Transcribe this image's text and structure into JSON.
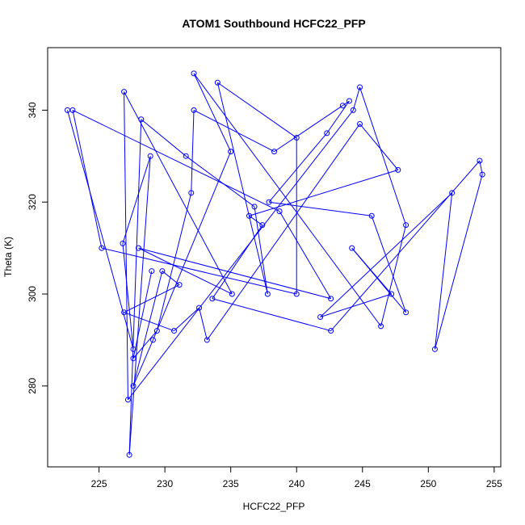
{
  "chart_data": {
    "type": "scatter",
    "title": "ATOM1 Southbound HCFC22_PFP",
    "xlabel": "HCFC22_PFP",
    "ylabel": "Theta (K)",
    "xlim": [
      221.1,
      255.5
    ],
    "ylim": [
      262.4,
      353.6
    ],
    "xticks": [
      225,
      230,
      235,
      240,
      245,
      250,
      255
    ],
    "yticks": [
      280,
      300,
      320,
      340
    ],
    "grid": false,
    "legend": "none",
    "colors": {
      "series": "#0000ff",
      "axes": "#000000"
    },
    "series": [
      {
        "marker": "open-circle",
        "line": true,
        "x": [
          222.6,
          227.6,
          226.8,
          228.9,
          227.3,
          228.2,
          231.6,
          236.8,
          237.8,
          234.0,
          240.0,
          240.0,
          225.2,
          223.0,
          238.7,
          242.6,
          228.0,
          235.1,
          226.9,
          227.2,
          244.3,
          244.8,
          248.3,
          246.4,
          232.2,
          235.0,
          229.1,
          227.6,
          229.8,
          231.1,
          226.9,
          230.7,
          232.6,
          233.2,
          244.8,
          247.7,
          236.4,
          237.4,
          233.6,
          242.6,
          253.9,
          254.1,
          250.5,
          251.8,
          241.8,
          247.2,
          244.2,
          248.3,
          245.7,
          237.9,
          242.3,
          244.0,
          243.5,
          238.3,
          232.2,
          232.0,
          229.4,
          227.6,
          229.0
        ],
        "y": [
          340.0,
          288.0,
          311.0,
          330.0,
          265.0,
          338.0,
          330.0,
          319.0,
          300.0,
          346.0,
          334.0,
          300.0,
          310.0,
          340.0,
          318.0,
          299.0,
          310.0,
          300.0,
          344.0,
          277.0,
          340.0,
          345.0,
          315.0,
          293.0,
          348.0,
          331.0,
          290.0,
          280.0,
          305.0,
          302.0,
          296.0,
          292.0,
          297.0,
          290.0,
          337.0,
          327.0,
          317.0,
          315.0,
          299.0,
          292.0,
          329.0,
          326.0,
          288.0,
          322.0,
          295.0,
          300.0,
          310.0,
          296.0,
          317.0,
          320.0,
          335.0,
          342.0,
          341.0,
          331.0,
          340.0,
          322.0,
          292.0,
          286.0,
          305.0
        ]
      }
    ]
  }
}
